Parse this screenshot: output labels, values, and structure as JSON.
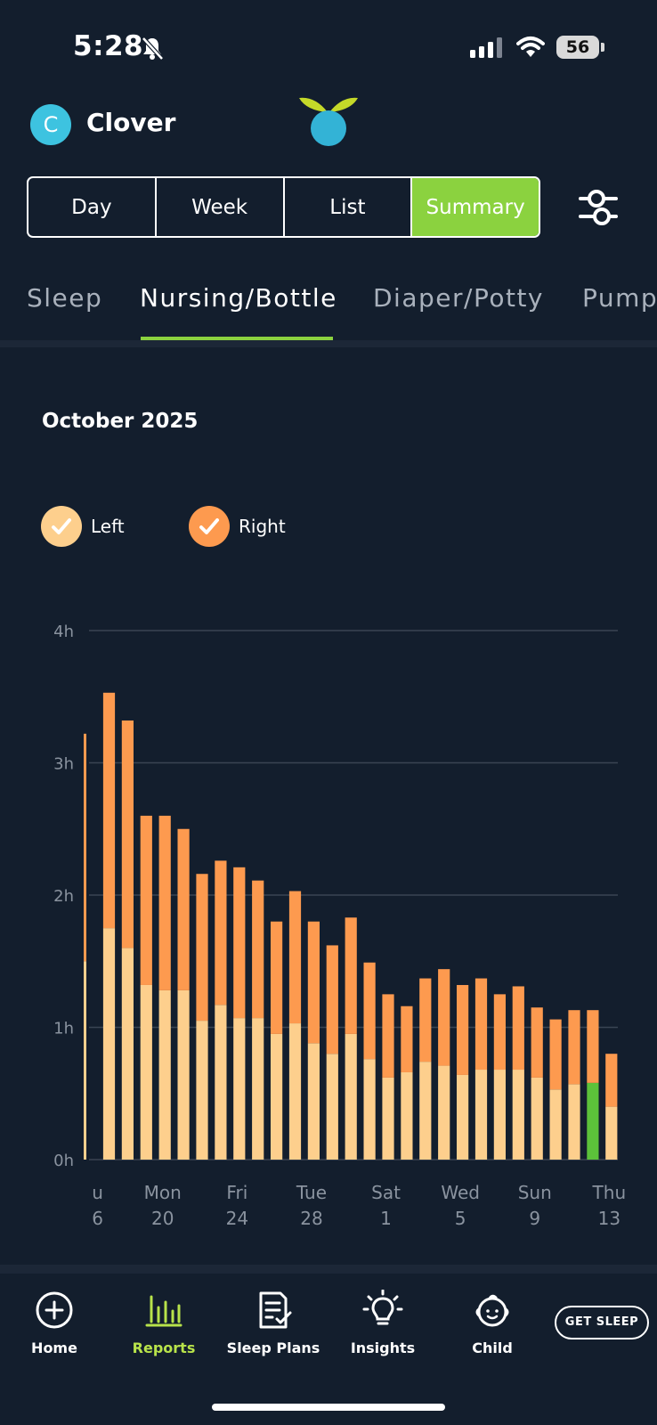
{
  "status_bar": {
    "time": "5:28",
    "battery": "56"
  },
  "header": {
    "avatar_initial": "C",
    "child_name": "Clover"
  },
  "segments": [
    {
      "label": "Day",
      "active": false
    },
    {
      "label": "Week",
      "active": false
    },
    {
      "label": "List",
      "active": false
    },
    {
      "label": "Summary",
      "active": true
    }
  ],
  "categories": [
    {
      "label": "Sleep",
      "active": false
    },
    {
      "label": "Nursing/Bottle",
      "active": true
    },
    {
      "label": "Diaper/Potty",
      "active": false
    },
    {
      "label": "Pump",
      "active": false
    }
  ],
  "month_label": "October 2025",
  "legend": [
    {
      "label": "Left",
      "color": "#fdcf8d"
    },
    {
      "label": "Right",
      "color": "#fd9a4f"
    }
  ],
  "chart_data": {
    "type": "bar",
    "stacked": true,
    "ylabel": "",
    "ylim": [
      0,
      4
    ],
    "y_ticks": [
      "0h",
      "1h",
      "2h",
      "3h",
      "4h"
    ],
    "x_tick_labels": [
      {
        "day": "u",
        "date": "6",
        "index": 0
      },
      {
        "day": "Mon",
        "date": "20",
        "index": 3.5
      },
      {
        "day": "Fri",
        "date": "24",
        "index": 7.5
      },
      {
        "day": "Tue",
        "date": "28",
        "index": 11.5
      },
      {
        "day": "Sat",
        "date": "1",
        "index": 15.5
      },
      {
        "day": "Wed",
        "date": "5",
        "index": 19.5
      },
      {
        "day": "Sun",
        "date": "9",
        "index": 23.5
      },
      {
        "day": "Thu",
        "date": "13",
        "index": 27.5
      }
    ],
    "highlight_color": "#5cc23a",
    "series": [
      {
        "name": "Left",
        "color": "#fdcf8d",
        "values": [
          1.5,
          1.75,
          1.6,
          1.32,
          1.28,
          1.28,
          1.05,
          1.17,
          1.07,
          1.07,
          0.95,
          1.03,
          0.88,
          0.8,
          0.95,
          0.76,
          0.62,
          0.66,
          0.74,
          0.71,
          0.64,
          0.68,
          0.68,
          0.68,
          0.62,
          0.53,
          0.57,
          0.58,
          0.4
        ]
      },
      {
        "name": "Right",
        "color": "#fd9a4f",
        "values": [
          1.72,
          1.78,
          1.72,
          1.28,
          1.32,
          1.22,
          1.11,
          1.09,
          1.14,
          1.04,
          0.85,
          1.0,
          0.92,
          0.82,
          0.88,
          0.73,
          0.63,
          0.5,
          0.63,
          0.73,
          0.68,
          0.69,
          0.57,
          0.63,
          0.53,
          0.53,
          0.56,
          0.55,
          0.4
        ]
      }
    ],
    "highlight_index": 27
  },
  "nav": {
    "items": [
      {
        "label": "Home",
        "icon": "home-icon",
        "active": false
      },
      {
        "label": "Reports",
        "icon": "reports-icon",
        "active": true
      },
      {
        "label": "Sleep Plans",
        "icon": "sleep-plans-icon",
        "active": false
      },
      {
        "label": "Insights",
        "icon": "insights-icon",
        "active": false
      },
      {
        "label": "Child",
        "icon": "child-icon",
        "active": false
      }
    ],
    "cta_label": "GET SLEEP",
    "active_color": "#b8e34a"
  }
}
